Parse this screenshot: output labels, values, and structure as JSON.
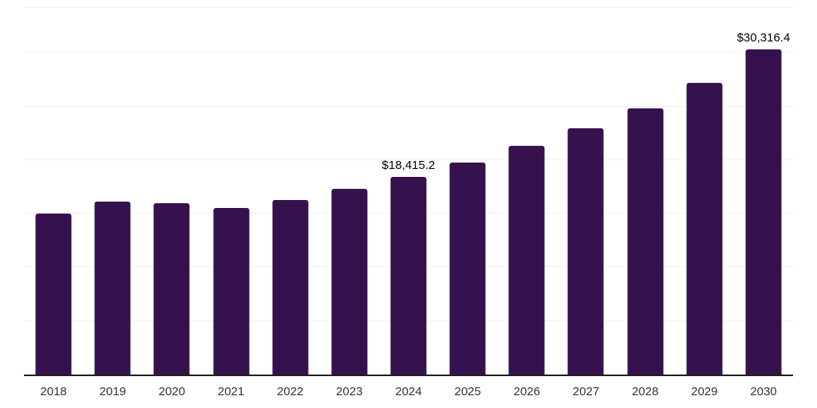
{
  "chart_data": {
    "type": "bar",
    "title": "",
    "xlabel": "",
    "ylabel": "",
    "categories": [
      "2018",
      "2019",
      "2020",
      "2021",
      "2022",
      "2023",
      "2024",
      "2025",
      "2026",
      "2027",
      "2028",
      "2029",
      "2030"
    ],
    "values": [
      15050,
      16100,
      15950,
      15500,
      16300,
      17300,
      18415.2,
      19800,
      21300,
      22950,
      24800,
      27200,
      30316.4
    ],
    "value_labels": {
      "2024": "$18,415.2",
      "2030": "$30,316.4"
    },
    "ylim": [
      0,
      34300
    ],
    "gridline_values": [
      5000,
      10000,
      15000,
      20000,
      25000,
      30000
    ],
    "grid": "horizontal-light",
    "legend": "none",
    "colors": {
      "bar": "#35114d",
      "axis": "#1f1f1f",
      "gridline": "#f1f1f1",
      "value_label": "#000000",
      "tick_label": "#333333",
      "background": "#ffffff"
    }
  }
}
